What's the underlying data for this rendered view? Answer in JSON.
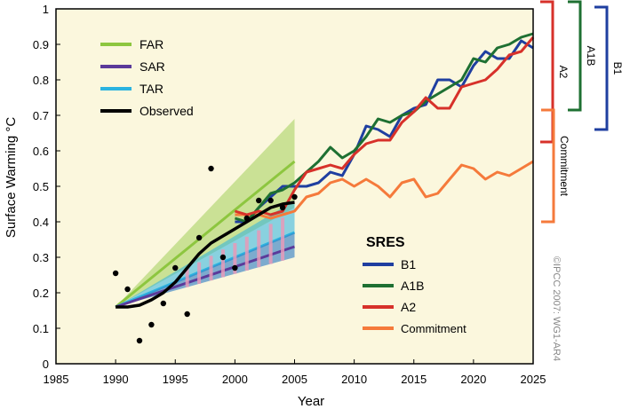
{
  "chart_data": {
    "type": "line",
    "xlabel": "Year",
    "ylabel": "Surface Warming °C",
    "xlim": [
      1985,
      2025
    ],
    "ylim": [
      0,
      1
    ],
    "xticks": [
      "1985",
      "1990",
      "1995",
      "2000",
      "2005",
      "2010",
      "2015",
      "2020",
      "2025"
    ],
    "yticks": [
      "0",
      "0.1",
      "0.2",
      "0.3",
      "0.4",
      "0.5",
      "0.6",
      "0.7",
      "0.8",
      "0.9",
      "1"
    ],
    "legend_assessments": [
      "FAR",
      "SAR",
      "TAR",
      "Observed"
    ],
    "legend_sres_title": "SRES",
    "legend_sres": [
      "B1",
      "A1B",
      "A2",
      "Commitment"
    ],
    "brackets": [
      "A2",
      "A1B",
      "B1",
      "Commitment"
    ],
    "credit": "©IPCC 2007: WG1-AR4",
    "colors": {
      "FAR": "#8dc63f",
      "SAR": "#5b3a9a",
      "TAR": "#2bb3e0",
      "Observed": "#000000",
      "B1": "#1f3fa0",
      "A1B": "#1e7032",
      "A2": "#d7312a",
      "Commitment": "#f57a3b",
      "background": "#fbf7dd"
    },
    "projection_ranges": {
      "FAR": {
        "start": [
          1990,
          0.16
        ],
        "end_low": 0.44,
        "end_mid": 0.57,
        "end_high": 0.69
      },
      "SAR": {
        "start": [
          1990,
          0.16
        ],
        "end_low": 0.3,
        "end_mid": 0.33,
        "end_high": 0.37
      },
      "TAR": {
        "start": [
          1990,
          0.16
        ],
        "end_low": 0.3,
        "end_mid": 0.37,
        "end_high": 0.46
      }
    },
    "observed_points": [
      [
        1990,
        0.255
      ],
      [
        1991,
        0.21
      ],
      [
        1992,
        0.065
      ],
      [
        1993,
        0.11
      ],
      [
        1994,
        0.17
      ],
      [
        1995,
        0.27
      ],
      [
        1996,
        0.14
      ],
      [
        1997,
        0.355
      ],
      [
        1998,
        0.55
      ],
      [
        1999,
        0.3
      ],
      [
        2000,
        0.27
      ],
      [
        2001,
        0.41
      ],
      [
        2002,
        0.46
      ],
      [
        2003,
        0.46
      ],
      [
        2004,
        0.44
      ],
      [
        2005,
        0.47
      ]
    ],
    "observed_smoothed": {
      "x": [
        1990,
        1991,
        1992,
        1993,
        1994,
        1995,
        1996,
        1997,
        1998,
        1999,
        2000,
        2001,
        2002,
        2003,
        2004,
        2005
      ],
      "y": [
        0.16,
        0.16,
        0.165,
        0.18,
        0.2,
        0.23,
        0.27,
        0.31,
        0.34,
        0.36,
        0.38,
        0.4,
        0.42,
        0.44,
        0.45,
        0.455
      ]
    },
    "series": [
      {
        "name": "B1",
        "x": [
          2000,
          2001,
          2002,
          2003,
          2004,
          2005,
          2006,
          2007,
          2008,
          2009,
          2010,
          2011,
          2012,
          2013,
          2014,
          2015,
          2016,
          2017,
          2018,
          2019,
          2020,
          2021,
          2022,
          2023,
          2024,
          2025
        ],
        "y": [
          0.4,
          0.4,
          0.44,
          0.47,
          0.5,
          0.5,
          0.5,
          0.51,
          0.54,
          0.53,
          0.59,
          0.67,
          0.66,
          0.64,
          0.7,
          0.72,
          0.73,
          0.8,
          0.8,
          0.78,
          0.84,
          0.88,
          0.86,
          0.86,
          0.91,
          0.89
        ]
      },
      {
        "name": "A1B",
        "x": [
          2000,
          2001,
          2002,
          2003,
          2004,
          2005,
          2006,
          2007,
          2008,
          2009,
          2010,
          2011,
          2012,
          2013,
          2014,
          2015,
          2016,
          2017,
          2018,
          2019,
          2020,
          2021,
          2022,
          2023,
          2024,
          2025
        ],
        "y": [
          0.41,
          0.4,
          0.44,
          0.48,
          0.49,
          0.51,
          0.54,
          0.57,
          0.61,
          0.58,
          0.6,
          0.64,
          0.69,
          0.68,
          0.7,
          0.71,
          0.74,
          0.76,
          0.78,
          0.8,
          0.86,
          0.85,
          0.89,
          0.9,
          0.92,
          0.93
        ]
      },
      {
        "name": "A2",
        "x": [
          2000,
          2001,
          2002,
          2003,
          2004,
          2005,
          2006,
          2007,
          2008,
          2009,
          2010,
          2011,
          2012,
          2013,
          2014,
          2015,
          2016,
          2017,
          2018,
          2019,
          2020,
          2021,
          2022,
          2023,
          2024,
          2025
        ],
        "y": [
          0.43,
          0.42,
          0.43,
          0.42,
          0.43,
          0.49,
          0.54,
          0.55,
          0.56,
          0.55,
          0.59,
          0.62,
          0.63,
          0.63,
          0.68,
          0.71,
          0.75,
          0.72,
          0.72,
          0.78,
          0.79,
          0.8,
          0.83,
          0.87,
          0.88,
          0.92
        ]
      },
      {
        "name": "Commitment",
        "x": [
          2000,
          2001,
          2002,
          2003,
          2004,
          2005,
          2006,
          2007,
          2008,
          2009,
          2010,
          2011,
          2012,
          2013,
          2014,
          2015,
          2016,
          2017,
          2018,
          2019,
          2020,
          2021,
          2022,
          2023,
          2024,
          2025
        ],
        "y": [
          0.42,
          0.42,
          0.42,
          0.41,
          0.42,
          0.43,
          0.47,
          0.48,
          0.51,
          0.52,
          0.5,
          0.52,
          0.5,
          0.47,
          0.51,
          0.52,
          0.47,
          0.48,
          0.52,
          0.56,
          0.55,
          0.52,
          0.54,
          0.53,
          0.55,
          0.57
        ]
      }
    ]
  }
}
